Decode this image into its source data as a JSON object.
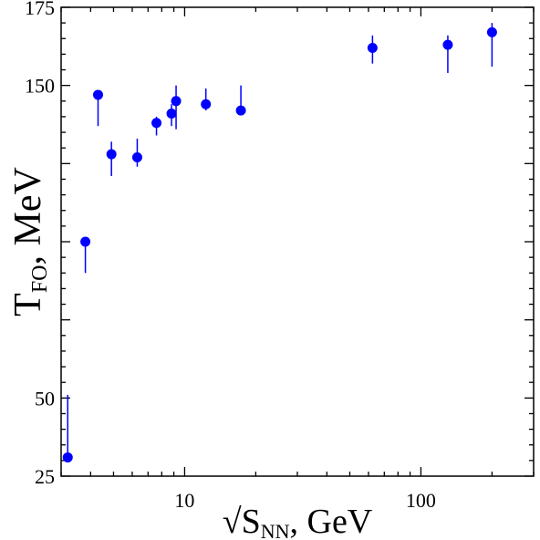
{
  "chart_data": {
    "type": "scatter",
    "xscale": "log",
    "xlim": [
      3,
      300
    ],
    "ylim": [
      25,
      175
    ],
    "xlabel": {
      "prefix": "√S",
      "sub": "NN",
      "suffix": ", GeV"
    },
    "ylabel": {
      "prefix": "T",
      "sub": "FO",
      "suffix": ", MeV"
    },
    "x_ticklabels": [
      {
        "value": 10,
        "label": "10"
      },
      {
        "value": 100,
        "label": "100"
      }
    ],
    "y_ticklabels": [
      {
        "value": 25,
        "label": "25"
      },
      {
        "value": 50,
        "label": "50"
      },
      {
        "value": 150,
        "label": "150"
      },
      {
        "value": 175,
        "label": "175"
      }
    ],
    "y_major_ticks": [
      25,
      50,
      75,
      100,
      125,
      150,
      175
    ],
    "marker_color": "#0000ff",
    "points": [
      {
        "x": 3.2,
        "y": 31,
        "err_low": 31,
        "err_high": 51
      },
      {
        "x": 3.8,
        "y": 100,
        "err_low": 90,
        "err_high": 100
      },
      {
        "x": 4.3,
        "y": 147,
        "err_low": 137,
        "err_high": 147
      },
      {
        "x": 4.9,
        "y": 128,
        "err_low": 121,
        "err_high": 132
      },
      {
        "x": 6.3,
        "y": 127,
        "err_low": 124,
        "err_high": 133
      },
      {
        "x": 7.6,
        "y": 138,
        "err_low": 134,
        "err_high": 140
      },
      {
        "x": 8.8,
        "y": 141,
        "err_low": 137,
        "err_high": 144
      },
      {
        "x": 9.2,
        "y": 145,
        "err_low": 136,
        "err_high": 150
      },
      {
        "x": 12.3,
        "y": 144,
        "err_low": 142,
        "err_high": 149
      },
      {
        "x": 17.3,
        "y": 142,
        "err_low": 141,
        "err_high": 150
      },
      {
        "x": 62.4,
        "y": 162,
        "err_low": 157,
        "err_high": 166
      },
      {
        "x": 130,
        "y": 163,
        "err_low": 154,
        "err_high": 166
      },
      {
        "x": 200,
        "y": 167,
        "err_low": 156,
        "err_high": 170
      }
    ]
  }
}
